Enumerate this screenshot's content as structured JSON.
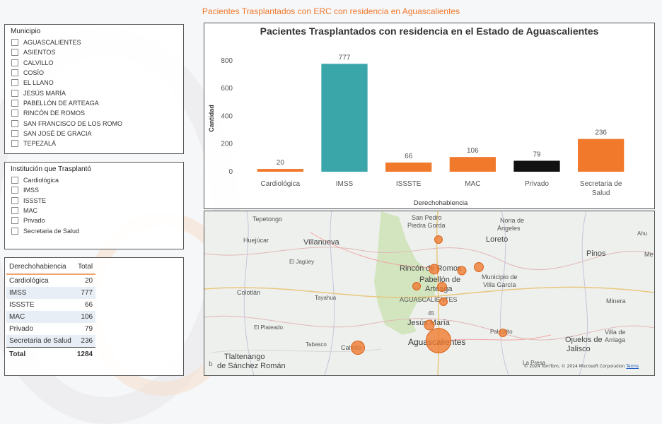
{
  "report_title": "Pacientes Trasplantados con ERC con residencia en Aguascalientes",
  "municipio_slicer": {
    "title": "Municipio",
    "items": [
      "AGUASCALIENTES",
      "ASIENTOS",
      "CALVILLO",
      "COSÍO",
      "EL LLANO",
      "JESÚS MARÍA",
      "PABELLÓN DE ARTEAGA",
      "RINCÓN DE ROMOS",
      "SAN FRANCISCO DE LOS ROMO",
      "SAN JOSÉ DE GRACIA",
      "TEPEZALÁ"
    ]
  },
  "institucion_slicer": {
    "title": "Institución que Trasplantó",
    "items": [
      "Cardiológica",
      "IMSS",
      "ISSSTE",
      "MAC",
      "Privado",
      "Secretaria de Salud"
    ]
  },
  "table": {
    "headers": [
      "Derechohabiencia",
      "Total"
    ],
    "rows": [
      [
        "Cardiológica",
        "20"
      ],
      [
        "IMSS",
        "777"
      ],
      [
        "ISSSTE",
        "66"
      ],
      [
        "MAC",
        "106"
      ],
      [
        "Privado",
        "79"
      ],
      [
        "Secretaria de Salud",
        "236"
      ]
    ],
    "total_label": "Total",
    "total_value": "1284"
  },
  "chart_data": {
    "type": "bar",
    "title": "Pacientes Trasplantados con residencia en el Estado de Aguascalientes",
    "xlabel": "Derechohabiencia",
    "ylabel": "Cantidad",
    "categories": [
      "Cardiológica",
      "IMSS",
      "ISSSTE",
      "MAC",
      "Privado",
      "Secretaria de Salud"
    ],
    "category_lines": [
      [
        "Cardiológica"
      ],
      [
        "IMSS"
      ],
      [
        "ISSSTE"
      ],
      [
        "MAC"
      ],
      [
        "Privado"
      ],
      [
        "Secretaria de",
        "Salud"
      ]
    ],
    "values": [
      20,
      777,
      66,
      106,
      79,
      236
    ],
    "data_labels": [
      "20",
      "777",
      "66",
      "106",
      "79",
      "236"
    ],
    "colors": [
      "#f0792b",
      "#3aa6a9",
      "#f0792b",
      "#f0792b",
      "#111111",
      "#f0792b"
    ],
    "ylim": [
      0,
      850
    ],
    "yticks": [
      0,
      200,
      400,
      600,
      800
    ],
    "grid": false,
    "legend": "none"
  },
  "map": {
    "labels": [
      "Tepetongo",
      "San Pedro",
      "Piedra Gorda",
      "Noria de",
      "Ángeles",
      "Ahu",
      "Huejúcar",
      "Villanueva",
      "Loreto",
      "Pinos",
      "El Jagüey",
      "Rincón de Romos",
      "Municipio de",
      "Villa García",
      "Me",
      "Pabellón de",
      "Arteaga",
      "Colotlán",
      "Tayahua",
      "AGUASCALIENTES",
      "Minera",
      "45",
      "Jesús María",
      "El Plateado",
      "Palo Alto",
      "Villa de",
      "Arriaga",
      "Ojuelos de",
      "Jalisco",
      "Tabasco",
      "Calvillo",
      "Aguascalientes",
      "Tlaltenango",
      "de Sánchez Román",
      "La Presa"
    ],
    "copyright": "© 2024 TomTom, © 2024 Microsoft Corporation",
    "terms": "Terms",
    "bing_mark": "b"
  }
}
